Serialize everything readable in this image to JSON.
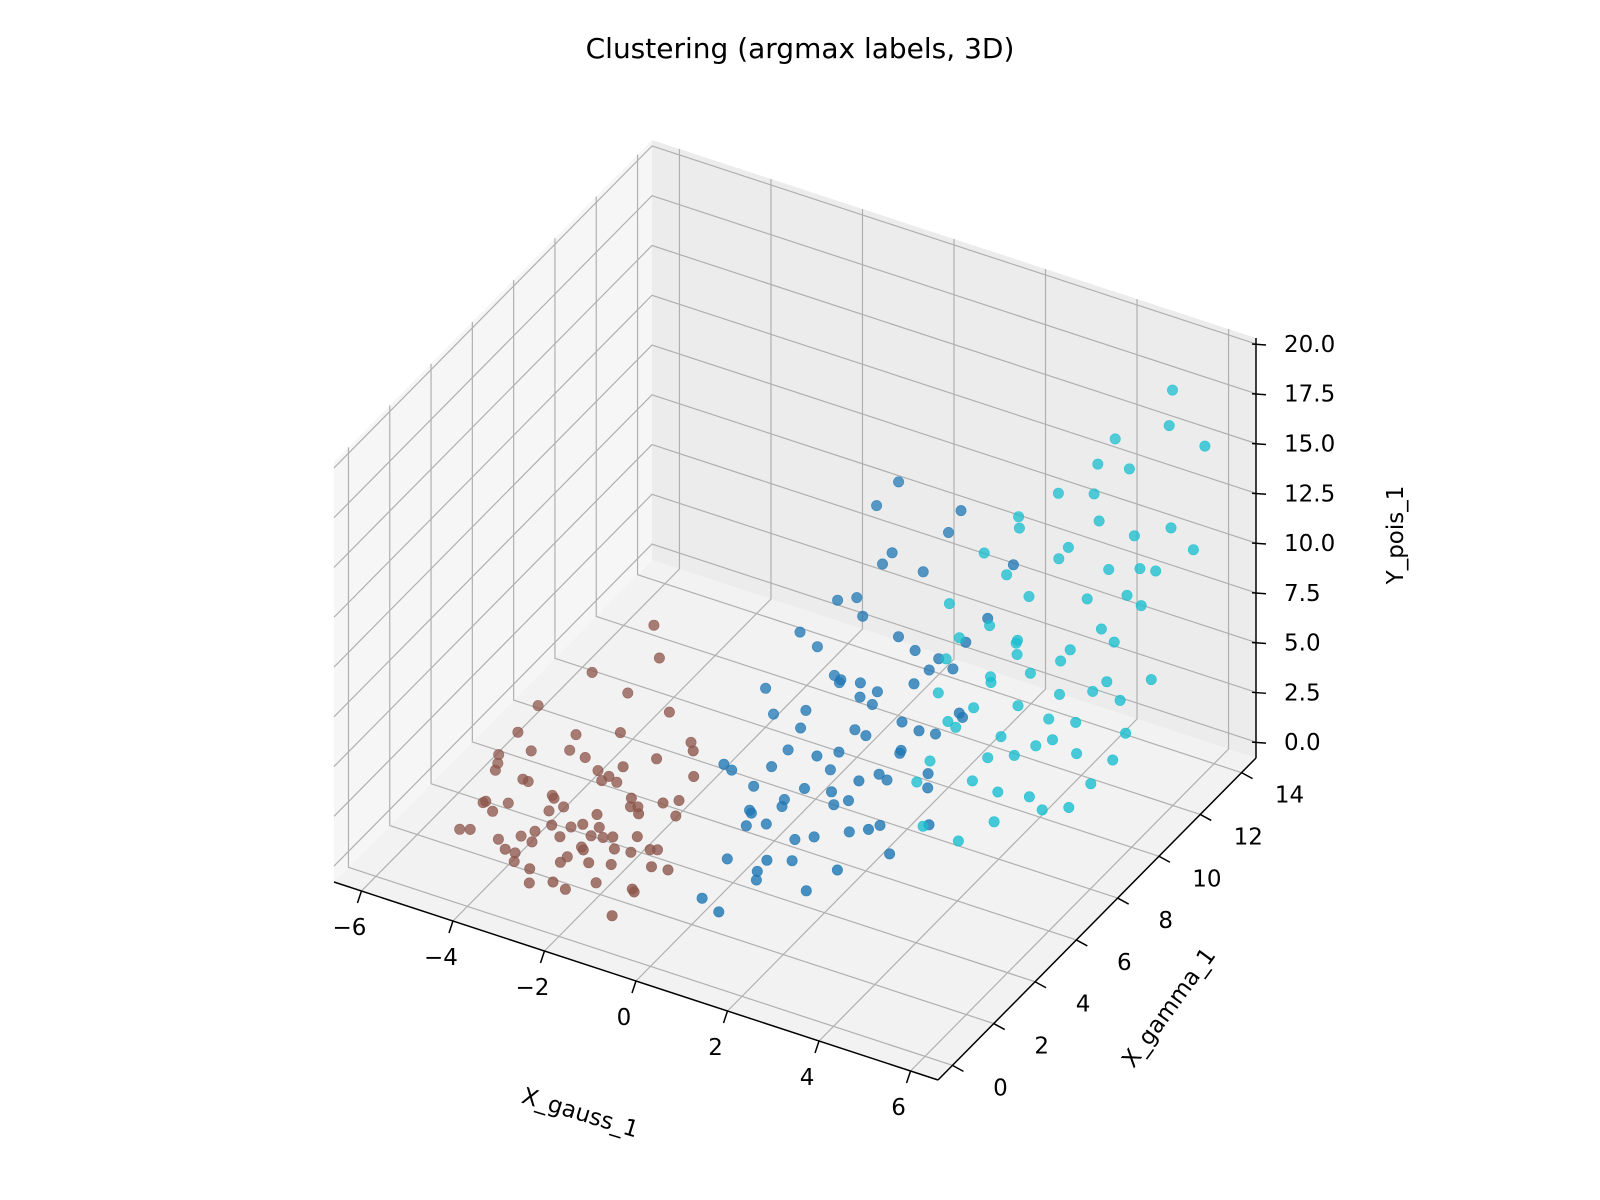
{
  "chart_data": {
    "type": "scatter",
    "projection": "3d",
    "title": "Clustering (argmax labels, 3D)",
    "xlabel": "X_gauss_1",
    "ylabel": "X_gamma_1",
    "zlabel": "Y_pois_1",
    "xlim": [
      -6.6,
      6.6
    ],
    "ylim": [
      -0.7,
      14.7
    ],
    "zlim": [
      -0.8,
      20.3
    ],
    "x_ticks": [
      -6,
      -4,
      -2,
      0,
      2,
      4,
      6
    ],
    "x_tick_labels": [
      "−6",
      "−4",
      "−2",
      "0",
      "2",
      "4",
      "6"
    ],
    "y_ticks": [
      0,
      2,
      4,
      6,
      8,
      10,
      12,
      14
    ],
    "y_tick_labels": [
      "0",
      "2",
      "4",
      "6",
      "8",
      "10",
      "12",
      "14"
    ],
    "z_ticks": [
      0,
      2.5,
      5,
      7.5,
      10,
      12.5,
      15,
      17.5,
      20
    ],
    "z_tick_labels": [
      "0.0",
      "2.5",
      "5.0",
      "7.5",
      "10.0",
      "12.5",
      "15.0",
      "17.5",
      "20.0"
    ],
    "grid": true,
    "legend": "none",
    "colors": {
      "pane": "#f2f2f2",
      "grid": "#b0b0b0"
    },
    "series": [
      {
        "color": "#8c564b",
        "points": [
          [
            -4.2,
            1.8,
            4.0
          ],
          [
            -4.5,
            2.0,
            2.0
          ],
          [
            -4.0,
            1.5,
            1.0
          ],
          [
            -3.8,
            2.5,
            3.0
          ],
          [
            -3.5,
            1.2,
            1.0
          ],
          [
            -3.6,
            2.2,
            5.0
          ],
          [
            -3.2,
            1.5,
            2.0
          ],
          [
            -3.0,
            2.8,
            1.0
          ],
          [
            -3.1,
            1.0,
            0.0
          ],
          [
            -2.8,
            2.0,
            3.0
          ],
          [
            -2.6,
            1.4,
            1.0
          ],
          [
            -2.5,
            3.0,
            4.0
          ],
          [
            -2.4,
            0.6,
            1.0
          ],
          [
            -2.2,
            2.4,
            2.0
          ],
          [
            -2.0,
            1.8,
            0.0
          ],
          [
            -2.1,
            3.2,
            6.0
          ],
          [
            -1.8,
            1.0,
            2.0
          ],
          [
            -1.6,
            2.6,
            1.0
          ],
          [
            -1.5,
            1.5,
            3.0
          ],
          [
            -1.4,
            3.4,
            5.0
          ],
          [
            -1.2,
            0.8,
            0.0
          ],
          [
            -1.0,
            2.2,
            2.0
          ],
          [
            -0.9,
            1.2,
            1.0
          ],
          [
            -0.8,
            3.0,
            3.0
          ],
          [
            -4.3,
            0.8,
            2.0
          ],
          [
            -4.6,
            2.8,
            3.0
          ],
          [
            -3.9,
            3.2,
            6.0
          ],
          [
            -3.4,
            0.5,
            2.0
          ],
          [
            -2.9,
            3.6,
            8.0
          ],
          [
            -2.3,
            4.0,
            7.0
          ],
          [
            -1.7,
            4.2,
            9.0
          ],
          [
            -1.1,
            4.4,
            5.0
          ],
          [
            -3.7,
            1.6,
            0.0
          ],
          [
            -3.3,
            2.4,
            2.0
          ],
          [
            -2.7,
            1.2,
            3.0
          ],
          [
            -2.5,
            2.2,
            1.0
          ],
          [
            -2.0,
            2.8,
            4.0
          ],
          [
            -1.6,
            1.8,
            2.0
          ],
          [
            -1.3,
            2.0,
            0.0
          ],
          [
            -0.9,
            2.6,
            4.0
          ],
          [
            -0.7,
            1.6,
            2.0
          ],
          [
            -0.6,
            3.4,
            6.0
          ],
          [
            -4.0,
            2.6,
            0.0
          ],
          [
            -3.5,
            3.0,
            2.0
          ],
          [
            -3.0,
            0.8,
            1.0
          ],
          [
            -2.6,
            2.6,
            5.0
          ],
          [
            -2.2,
            1.6,
            3.0
          ],
          [
            -1.9,
            3.6,
            2.0
          ],
          [
            -1.5,
            2.4,
            4.0
          ],
          [
            -1.2,
            3.0,
            1.0
          ],
          [
            -4.8,
            1.4,
            1.0
          ],
          [
            -4.4,
            2.4,
            4.0
          ],
          [
            -3.9,
            1.0,
            3.0
          ],
          [
            -3.3,
            3.4,
            4.0
          ],
          [
            -2.8,
            2.6,
            6.0
          ],
          [
            -2.4,
            1.2,
            0.0
          ],
          [
            -1.9,
            2.2,
            5.0
          ],
          [
            -1.4,
            1.2,
            2.0
          ],
          [
            -1.0,
            3.6,
            3.0
          ],
          [
            -0.7,
            2.4,
            1.0
          ],
          [
            -3.6,
            1.8,
            4.0
          ],
          [
            -3.1,
            2.2,
            3.0
          ],
          [
            -2.7,
            1.6,
            2.0
          ],
          [
            -2.3,
            2.8,
            1.0
          ],
          [
            -1.8,
            1.4,
            4.0
          ],
          [
            -1.5,
            2.0,
            6.0
          ],
          [
            -1.1,
            1.8,
            3.0
          ],
          [
            -0.8,
            1.2,
            5.0
          ],
          [
            -4.1,
            2.2,
            2.0
          ],
          [
            -2.0,
            4.6,
            10.0
          ],
          [
            -1.3,
            3.8,
            7.0
          ],
          [
            -0.5,
            3.2,
            5.0
          ],
          [
            -3.4,
            1.8,
            1.0
          ],
          [
            -2.9,
            2.4,
            0.0
          ],
          [
            -2.1,
            1.4,
            2.0
          ],
          [
            -1.7,
            2.8,
            3.0
          ],
          [
            -4.2,
            1.2,
            3.0
          ],
          [
            -3.8,
            2.0,
            6.0
          ],
          [
            -2.6,
            3.4,
            3.0
          ],
          [
            -2.2,
            2.0,
            2.0
          ]
        ]
      },
      {
        "color": "#1f77b4",
        "points": [
          [
            -0.2,
            4.0,
            5.0
          ],
          [
            0.0,
            5.0,
            3.0
          ],
          [
            0.3,
            6.0,
            4.0
          ],
          [
            0.5,
            4.5,
            2.0
          ],
          [
            0.8,
            5.5,
            6.0
          ],
          [
            1.0,
            6.5,
            3.0
          ],
          [
            1.2,
            4.2,
            1.0
          ],
          [
            1.5,
            5.8,
            5.0
          ],
          [
            1.8,
            7.0,
            7.0
          ],
          [
            2.0,
            5.2,
            2.0
          ],
          [
            2.2,
            6.2,
            4.0
          ],
          [
            2.4,
            7.5,
            9.0
          ],
          [
            2.6,
            4.8,
            3.0
          ],
          [
            2.8,
            6.8,
            6.0
          ],
          [
            3.0,
            8.0,
            8.0
          ],
          [
            0.4,
            7.2,
            8.0
          ],
          [
            0.9,
            8.0,
            10.0
          ],
          [
            1.4,
            8.6,
            12.0
          ],
          [
            1.9,
            9.0,
            11.0
          ],
          [
            2.5,
            9.5,
            14.0
          ],
          [
            0.1,
            3.5,
            1.0
          ],
          [
            0.6,
            3.8,
            0.0
          ],
          [
            1.1,
            3.2,
            2.0
          ],
          [
            1.6,
            4.0,
            0.0
          ],
          [
            2.1,
            4.4,
            1.0
          ],
          [
            2.7,
            5.6,
            1.0
          ],
          [
            -0.1,
            5.8,
            7.0
          ],
          [
            0.2,
            6.8,
            9.0
          ],
          [
            0.7,
            7.6,
            6.0
          ],
          [
            1.3,
            7.4,
            10.0
          ],
          [
            1.7,
            6.4,
            8.0
          ],
          [
            2.3,
            8.4,
            7.0
          ],
          [
            0.0,
            2.5,
            0.0
          ],
          [
            0.5,
            2.2,
            0.0
          ],
          [
            0.3,
            5.2,
            4.0
          ],
          [
            0.8,
            4.6,
            3.0
          ],
          [
            1.2,
            5.4,
            5.0
          ],
          [
            1.7,
            5.0,
            4.0
          ],
          [
            2.0,
            6.0,
            6.0
          ],
          [
            2.5,
            6.6,
            5.0
          ],
          [
            0.6,
            6.2,
            6.0
          ],
          [
            1.0,
            7.0,
            7.0
          ],
          [
            1.4,
            6.8,
            5.0
          ],
          [
            1.9,
            7.8,
            9.0
          ],
          [
            2.2,
            7.2,
            4.0
          ],
          [
            2.9,
            7.0,
            3.0
          ],
          [
            3.2,
            6.4,
            2.0
          ],
          [
            3.4,
            8.8,
            10.0
          ],
          [
            3.6,
            9.6,
            12.0
          ],
          [
            0.4,
            5.6,
            2.0
          ],
          [
            0.9,
            5.0,
            1.0
          ],
          [
            1.3,
            6.0,
            2.0
          ],
          [
            1.8,
            5.6,
            3.0
          ],
          [
            2.4,
            5.8,
            2.0
          ],
          [
            2.8,
            7.6,
            5.0
          ],
          [
            3.0,
            6.8,
            4.0
          ],
          [
            -0.3,
            4.6,
            4.0
          ],
          [
            0.2,
            4.2,
            2.0
          ],
          [
            1.5,
            4.6,
            2.0
          ],
          [
            2.6,
            8.2,
            8.0
          ],
          [
            3.3,
            7.8,
            6.0
          ],
          [
            1.1,
            8.8,
            11.0
          ],
          [
            0.7,
            9.4,
            13.0
          ],
          [
            2.0,
            10.0,
            12.0
          ],
          [
            -0.2,
            6.4,
            5.0
          ],
          [
            0.5,
            7.8,
            6.0
          ],
          [
            1.6,
            7.2,
            6.0
          ],
          [
            2.1,
            6.8,
            3.0
          ],
          [
            2.7,
            6.2,
            7.0
          ],
          [
            3.1,
            8.4,
            9.0
          ],
          [
            0.0,
            4.8,
            2.0
          ],
          [
            0.4,
            4.0,
            3.0
          ],
          [
            0.8,
            3.4,
            1.0
          ],
          [
            1.2,
            4.8,
            4.0
          ],
          [
            1.6,
            6.6,
            7.0
          ],
          [
            2.3,
            5.0,
            5.0
          ],
          [
            2.6,
            7.0,
            8.0
          ],
          [
            3.5,
            7.2,
            7.0
          ],
          [
            0.3,
            8.4,
            9.0
          ],
          [
            1.0,
            9.8,
            14.0
          ]
        ]
      },
      {
        "color": "#17becf",
        "points": [
          [
            2.5,
            8.0,
            3.0
          ],
          [
            3.0,
            9.0,
            5.0
          ],
          [
            3.5,
            10.0,
            7.0
          ],
          [
            4.0,
            11.0,
            6.0
          ],
          [
            4.5,
            9.5,
            4.0
          ],
          [
            5.0,
            12.0,
            9.0
          ],
          [
            2.8,
            7.0,
            1.0
          ],
          [
            3.2,
            8.5,
            2.0
          ],
          [
            3.8,
            9.2,
            3.0
          ],
          [
            4.2,
            10.5,
            5.0
          ],
          [
            4.8,
            11.2,
            8.0
          ],
          [
            5.4,
            12.5,
            10.0
          ],
          [
            2.2,
            9.6,
            9.0
          ],
          [
            2.6,
            10.4,
            11.0
          ],
          [
            3.1,
            11.0,
            12.0
          ],
          [
            3.6,
            11.8,
            10.0
          ],
          [
            4.1,
            12.4,
            13.0
          ],
          [
            4.6,
            13.0,
            14.0
          ],
          [
            5.2,
            13.6,
            16.0
          ],
          [
            5.8,
            14.0,
            15.0
          ],
          [
            3.3,
            7.6,
            0.0
          ],
          [
            3.9,
            8.0,
            1.0
          ],
          [
            4.4,
            8.6,
            2.0
          ],
          [
            4.9,
            9.4,
            1.0
          ],
          [
            5.5,
            10.2,
            3.0
          ],
          [
            2.9,
            10.0,
            8.0
          ],
          [
            3.4,
            10.8,
            9.0
          ],
          [
            3.9,
            11.6,
            11.0
          ],
          [
            4.3,
            12.2,
            12.0
          ],
          [
            4.8,
            12.8,
            11.0
          ],
          [
            3.1,
            9.6,
            6.0
          ],
          [
            3.7,
            10.2,
            6.0
          ],
          [
            4.3,
            10.8,
            7.0
          ],
          [
            4.9,
            11.6,
            7.0
          ],
          [
            5.3,
            11.0,
            5.0
          ],
          [
            2.7,
            8.8,
            4.0
          ],
          [
            3.6,
            9.0,
            4.0
          ],
          [
            4.0,
            9.8,
            3.0
          ],
          [
            4.6,
            10.4,
            4.0
          ],
          [
            5.1,
            10.8,
            6.0
          ],
          [
            2.4,
            9.0,
            7.0
          ],
          [
            3.0,
            10.6,
            10.0
          ],
          [
            3.5,
            12.0,
            13.0
          ],
          [
            4.2,
            13.2,
            15.0
          ],
          [
            5.0,
            14.2,
            17.0
          ],
          [
            5.6,
            12.8,
            12.0
          ],
          [
            3.8,
            8.4,
            2.0
          ],
          [
            4.5,
            9.0,
            1.0
          ],
          [
            5.2,
            9.8,
            2.0
          ],
          [
            5.8,
            11.4,
            6.0
          ],
          [
            2.3,
            7.8,
            2.0
          ],
          [
            2.8,
            8.2,
            5.0
          ],
          [
            3.2,
            9.4,
            6.0
          ],
          [
            3.7,
            9.6,
            5.0
          ],
          [
            4.1,
            10.2,
            4.0
          ],
          [
            4.7,
            11.0,
            5.0
          ],
          [
            5.4,
            11.8,
            9.0
          ],
          [
            6.0,
            13.0,
            11.0
          ],
          [
            2.9,
            11.4,
            12.0
          ],
          [
            4.0,
            12.8,
            14.0
          ],
          [
            3.4,
            8.8,
            3.0
          ],
          [
            4.8,
            10.0,
            3.0
          ],
          [
            5.6,
            10.6,
            4.0
          ],
          [
            2.6,
            9.2,
            8.0
          ],
          [
            3.3,
            10.4,
            7.0
          ],
          [
            4.4,
            11.4,
            9.0
          ],
          [
            5.1,
            12.4,
            10.0
          ],
          [
            2.5,
            8.4,
            6.0
          ],
          [
            3.6,
            9.8,
            8.0
          ],
          [
            4.6,
            12.0,
            10.0
          ]
        ]
      }
    ]
  }
}
